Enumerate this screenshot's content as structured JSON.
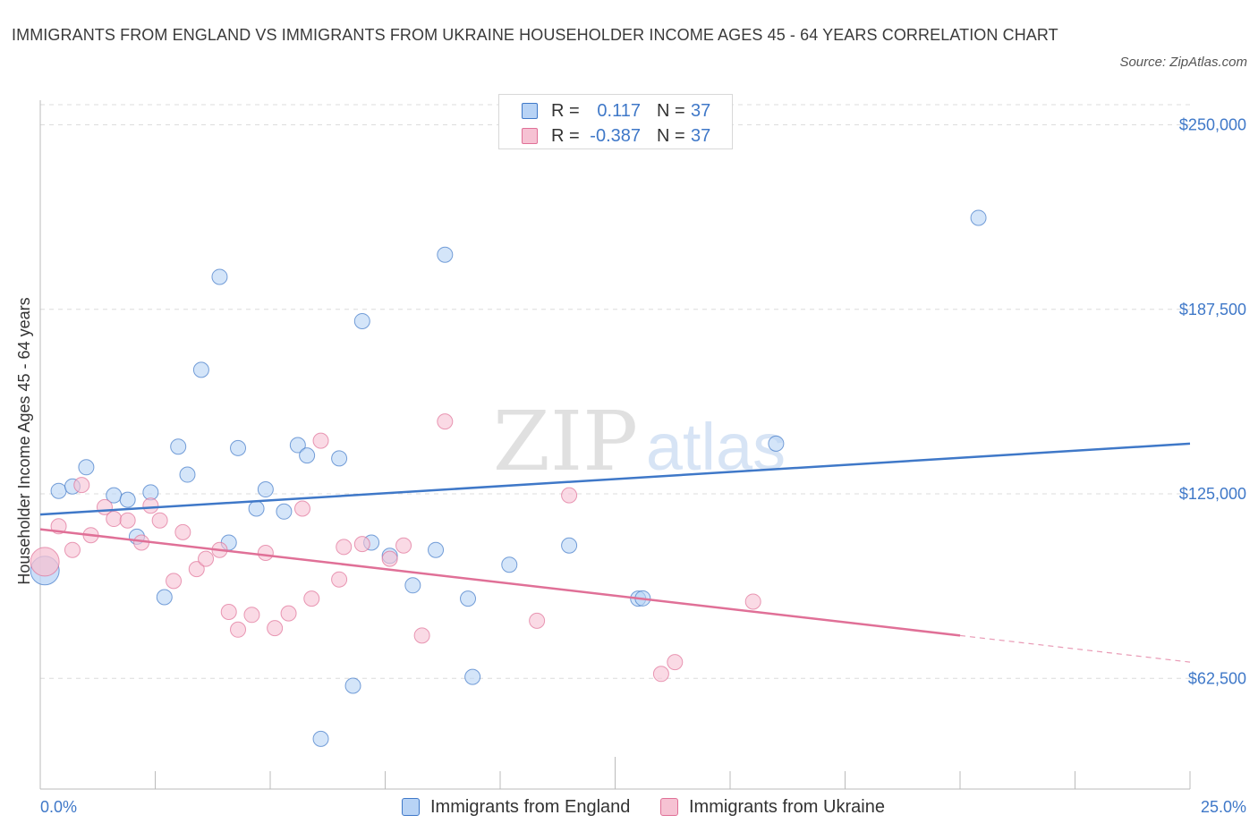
{
  "header": {
    "title": "IMMIGRANTS FROM ENGLAND VS IMMIGRANTS FROM UKRAINE HOUSEHOLDER INCOME AGES 45 - 64 YEARS CORRELATION CHART",
    "source": "Source: ZipAtlas.com"
  },
  "watermark": {
    "zip": "ZIP",
    "atlas": "atlas"
  },
  "legend_top": {
    "rows": [
      {
        "r_label": "R =",
        "r_value": "0.117",
        "n_label": "N =",
        "n_value": "37"
      },
      {
        "r_label": "R =",
        "r_value": "-0.387",
        "n_label": "N =",
        "n_value": "37"
      }
    ]
  },
  "chart_data": {
    "type": "scatter",
    "title": "IMMIGRANTS FROM ENGLAND VS IMMIGRANTS FROM UKRAINE HOUSEHOLDER INCOME AGES 45 - 64 YEARS CORRELATION CHART",
    "xlabel": "",
    "ylabel": "Householder Income Ages 45 - 64 years",
    "xlim": [
      0,
      25
    ],
    "ylim": [
      25000,
      265000
    ],
    "x_tick_labels": [
      "0.0%",
      "25.0%"
    ],
    "y_ticks": [
      62500,
      125000,
      187500,
      250000
    ],
    "y_tick_labels": [
      "$62,500",
      "$125,000",
      "$187,500",
      "$250,000"
    ],
    "grid": "horizontal dashed",
    "legend_position": "bottom",
    "colors": {
      "england": "#3f78c8",
      "ukraine": "#e07097",
      "england_fill": "#b8d3f5",
      "ukraine_fill": "#f6c2d3"
    },
    "series": [
      {
        "name": "Immigrants from England",
        "r": 0.117,
        "n": 37,
        "trend": {
          "x": [
            0,
            25
          ],
          "y": [
            118000,
            142000
          ]
        },
        "points": [
          {
            "x": 0.1,
            "y": 99000,
            "big": true
          },
          {
            "x": 0.4,
            "y": 126000
          },
          {
            "x": 0.7,
            "y": 127500
          },
          {
            "x": 1.0,
            "y": 134000
          },
          {
            "x": 1.6,
            "y": 124500
          },
          {
            "x": 1.9,
            "y": 123000
          },
          {
            "x": 2.1,
            "y": 110500
          },
          {
            "x": 2.4,
            "y": 125500
          },
          {
            "x": 2.7,
            "y": 90000
          },
          {
            "x": 3.0,
            "y": 141000
          },
          {
            "x": 3.2,
            "y": 131500
          },
          {
            "x": 3.5,
            "y": 167000
          },
          {
            "x": 3.9,
            "y": 198500
          },
          {
            "x": 4.1,
            "y": 108500
          },
          {
            "x": 4.3,
            "y": 140500
          },
          {
            "x": 4.7,
            "y": 120000
          },
          {
            "x": 4.9,
            "y": 126500
          },
          {
            "x": 5.3,
            "y": 119000
          },
          {
            "x": 5.6,
            "y": 141500
          },
          {
            "x": 5.8,
            "y": 138000
          },
          {
            "x": 6.5,
            "y": 137000
          },
          {
            "x": 6.8,
            "y": 60000
          },
          {
            "x": 7.0,
            "y": 183500
          },
          {
            "x": 7.2,
            "y": 108500
          },
          {
            "x": 7.6,
            "y": 104000
          },
          {
            "x": 8.1,
            "y": 94000
          },
          {
            "x": 8.6,
            "y": 106000
          },
          {
            "x": 8.8,
            "y": 206000
          },
          {
            "x": 9.3,
            "y": 89500
          },
          {
            "x": 9.4,
            "y": 63000
          },
          {
            "x": 10.2,
            "y": 101000
          },
          {
            "x": 11.5,
            "y": 107500
          },
          {
            "x": 13.0,
            "y": 89500
          },
          {
            "x": 16.0,
            "y": 142000
          },
          {
            "x": 20.4,
            "y": 218500
          },
          {
            "x": 6.1,
            "y": 42000
          },
          {
            "x": 13.1,
            "y": 89600
          }
        ]
      },
      {
        "name": "Immigrants from Ukraine",
        "r": -0.387,
        "n": 37,
        "trend": {
          "x": [
            0,
            20
          ],
          "y": [
            113000,
            77000
          ]
        },
        "trend_dashed": {
          "x": [
            20,
            25
          ],
          "y": [
            77000,
            68000
          ]
        },
        "points": [
          {
            "x": 0.1,
            "y": 102000,
            "big": true
          },
          {
            "x": 0.4,
            "y": 114000
          },
          {
            "x": 0.7,
            "y": 106000
          },
          {
            "x": 0.9,
            "y": 128000
          },
          {
            "x": 1.1,
            "y": 111000
          },
          {
            "x": 1.4,
            "y": 120500
          },
          {
            "x": 1.6,
            "y": 116500
          },
          {
            "x": 1.9,
            "y": 116000
          },
          {
            "x": 2.2,
            "y": 108500
          },
          {
            "x": 2.4,
            "y": 121000
          },
          {
            "x": 2.6,
            "y": 116000
          },
          {
            "x": 2.9,
            "y": 95500
          },
          {
            "x": 3.1,
            "y": 112000
          },
          {
            "x": 3.4,
            "y": 99500
          },
          {
            "x": 3.6,
            "y": 103000
          },
          {
            "x": 3.9,
            "y": 106000
          },
          {
            "x": 4.1,
            "y": 85000
          },
          {
            "x": 4.3,
            "y": 79000
          },
          {
            "x": 4.6,
            "y": 84000
          },
          {
            "x": 4.9,
            "y": 105000
          },
          {
            "x": 5.1,
            "y": 79500
          },
          {
            "x": 5.4,
            "y": 84500
          },
          {
            "x": 5.7,
            "y": 120000
          },
          {
            "x": 5.9,
            "y": 89500
          },
          {
            "x": 6.1,
            "y": 143000
          },
          {
            "x": 6.5,
            "y": 96000
          },
          {
            "x": 6.6,
            "y": 107000
          },
          {
            "x": 7.0,
            "y": 108000
          },
          {
            "x": 7.6,
            "y": 103000
          },
          {
            "x": 7.9,
            "y": 107500
          },
          {
            "x": 8.3,
            "y": 77000
          },
          {
            "x": 8.8,
            "y": 149500
          },
          {
            "x": 10.8,
            "y": 82000
          },
          {
            "x": 11.5,
            "y": 124500
          },
          {
            "x": 13.5,
            "y": 64000
          },
          {
            "x": 13.8,
            "y": 68000
          },
          {
            "x": 15.5,
            "y": 88500
          }
        ]
      }
    ]
  }
}
